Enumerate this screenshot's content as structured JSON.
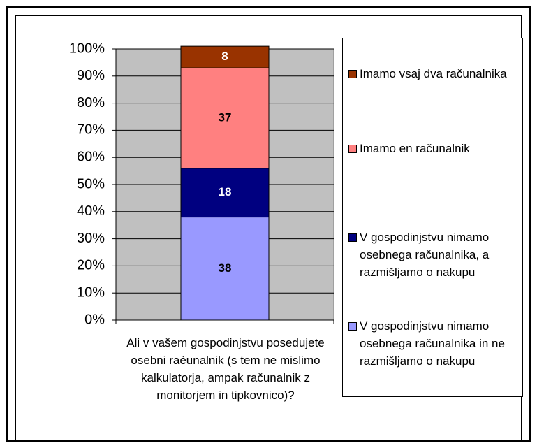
{
  "chart_data": {
    "type": "bar",
    "stacked": true,
    "categories": [
      "Ali v vašem gospodinjstvu posedujete osebni raèunalnik (s tem ne mislimo kalkulatorja, ampak računalnik z monitorjem in tipkovnico)?"
    ],
    "series": [
      {
        "name": "V gospodinjstvu nimamo osebnega računalnika in ne razmišljamo o nakupu",
        "color": "#9999ff",
        "values": [
          38
        ]
      },
      {
        "name": "V gospodinjstvu nimamo osebnega računalnika, a razmišljamo o nakupu",
        "color": "#000080",
        "values": [
          18
        ]
      },
      {
        "name": "Imamo en računalnik",
        "color": "#ff8080",
        "values": [
          37
        ]
      },
      {
        "name": "Imamo vsaj dva računalnika",
        "color": "#993300",
        "values": [
          8
        ]
      }
    ],
    "ylim": [
      0,
      100
    ],
    "yticks": [
      {
        "value": 0,
        "label": "0%"
      },
      {
        "value": 10,
        "label": "10%"
      },
      {
        "value": 20,
        "label": "20%"
      },
      {
        "value": 30,
        "label": "30%"
      },
      {
        "value": 40,
        "label": "40%"
      },
      {
        "value": 50,
        "label": "50%"
      },
      {
        "value": 60,
        "label": "60%"
      },
      {
        "value": 70,
        "label": "70%"
      },
      {
        "value": 80,
        "label": "80%"
      },
      {
        "value": 90,
        "label": "90%"
      },
      {
        "value": 100,
        "label": "100%"
      }
    ],
    "grid": true,
    "legend": "right"
  }
}
